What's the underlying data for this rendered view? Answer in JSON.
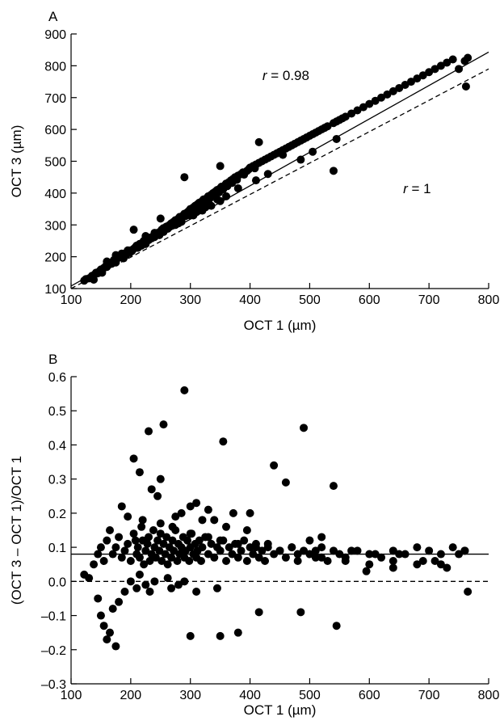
{
  "chart_data": [
    {
      "type": "scatter",
      "panel": "A",
      "xlabel": "OCT 1 (µm)",
      "ylabel": "OCT 3 (µm)",
      "xlim": [
        100,
        800
      ],
      "ylim": [
        100,
        900
      ],
      "xticks": [
        "100",
        "200",
        "300",
        "400",
        "500",
        "600",
        "700",
        "800"
      ],
      "yticks": [
        "100",
        "200",
        "300",
        "400",
        "500",
        "600",
        "700",
        "800",
        "900"
      ],
      "annotations": [
        {
          "var": "r",
          "text": " = 0.98",
          "x": 460,
          "y": 755
        },
        {
          "var": "r",
          "text": " = 1",
          "x": 680,
          "y": 400
        }
      ],
      "lines": [
        {
          "style": "solid",
          "points": [
            [
              100,
              108
            ],
            [
              800,
              843
            ]
          ]
        },
        {
          "style": "dashed",
          "points": [
            [
              100,
              100
            ],
            [
              800,
              790
            ]
          ]
        }
      ],
      "x": [
        122,
        125,
        130,
        135,
        138,
        140,
        142,
        145,
        148,
        150,
        152,
        155,
        158,
        160,
        162,
        165,
        168,
        170,
        172,
        175,
        178,
        180,
        182,
        185,
        188,
        190,
        192,
        195,
        198,
        200,
        202,
        205,
        208,
        210,
        212,
        215,
        218,
        220,
        222,
        225,
        228,
        230,
        232,
        235,
        238,
        240,
        242,
        245,
        248,
        250,
        252,
        255,
        258,
        260,
        262,
        265,
        268,
        270,
        272,
        275,
        278,
        280,
        282,
        285,
        288,
        290,
        292,
        295,
        298,
        300,
        302,
        305,
        308,
        310,
        312,
        315,
        318,
        320,
        322,
        325,
        328,
        330,
        332,
        335,
        338,
        340,
        342,
        345,
        348,
        350,
        352,
        355,
        358,
        360,
        362,
        365,
        368,
        370,
        372,
        375,
        378,
        380,
        385,
        388,
        390,
        395,
        398,
        400,
        405,
        408,
        410,
        415,
        420,
        425,
        430,
        435,
        440,
        445,
        450,
        455,
        460,
        465,
        470,
        475,
        480,
        485,
        490,
        495,
        500,
        505,
        510,
        515,
        520,
        525,
        530,
        540,
        545,
        550,
        555,
        560,
        570,
        580,
        590,
        600,
        610,
        620,
        630,
        640,
        650,
        660,
        670,
        680,
        690,
        700,
        710,
        720,
        730,
        740,
        750,
        760,
        762,
        765,
        225,
        240,
        255,
        270,
        285,
        305,
        320,
        335,
        350,
        360,
        175,
        195,
        215,
        230,
        262,
        280,
        300,
        310,
        325,
        345,
        410,
        430,
        485,
        505,
        545,
        290,
        350,
        380,
        415,
        455,
        540,
        160,
        185,
        205,
        250,
        275
      ],
      "y": [
        125,
        130,
        132,
        140,
        128,
        145,
        150,
        148,
        155,
        160,
        150,
        165,
        170,
        168,
        175,
        180,
        178,
        185,
        190,
        182,
        195,
        200,
        198,
        205,
        195,
        210,
        205,
        215,
        212,
        220,
        218,
        225,
        230,
        235,
        228,
        240,
        235,
        245,
        250,
        240,
        255,
        252,
        260,
        258,
        265,
        262,
        270,
        275,
        268,
        280,
        285,
        278,
        290,
        295,
        288,
        300,
        305,
        298,
        310,
        315,
        308,
        320,
        325,
        318,
        330,
        335,
        328,
        340,
        345,
        350,
        338,
        355,
        360,
        352,
        365,
        370,
        362,
        375,
        380,
        372,
        385,
        390,
        382,
        395,
        400,
        392,
        405,
        410,
        402,
        415,
        420,
        412,
        425,
        430,
        422,
        435,
        440,
        432,
        445,
        450,
        442,
        455,
        460,
        465,
        458,
        470,
        475,
        480,
        485,
        478,
        490,
        495,
        500,
        505,
        510,
        515,
        520,
        525,
        530,
        535,
        540,
        545,
        550,
        555,
        560,
        565,
        570,
        575,
        580,
        585,
        590,
        595,
        600,
        605,
        610,
        620,
        625,
        630,
        635,
        640,
        650,
        660,
        670,
        680,
        690,
        700,
        710,
        720,
        730,
        740,
        750,
        760,
        770,
        780,
        790,
        800,
        810,
        820,
        790,
        815,
        735,
        825,
        265,
        275,
        290,
        300,
        310,
        330,
        345,
        360,
        375,
        390,
        205,
        220,
        240,
        255,
        290,
        305,
        330,
        340,
        355,
        380,
        440,
        460,
        505,
        530,
        570,
        450,
        485,
        415,
        560,
        520,
        470,
        185,
        210,
        285,
        320,
        300
      ]
    },
    {
      "type": "scatter",
      "panel": "B",
      "xlabel": "OCT 1 (µm)",
      "ylabel": "(OCT 3 – OCT 1)/OCT 1",
      "xlim": [
        100,
        800
      ],
      "ylim": [
        -0.3,
        0.6
      ],
      "xticks": [
        "100",
        "200",
        "300",
        "400",
        "500",
        "600",
        "700",
        "800"
      ],
      "yticks": [
        "–0.3",
        "–0.2",
        "–0.1",
        "0.0",
        "0.1",
        "0.2",
        "0.3",
        "0.4",
        "0.5",
        "0.6"
      ],
      "lines": [
        {
          "style": "solid",
          "points": [
            [
              100,
              0.08
            ],
            [
              800,
              0.08
            ]
          ]
        },
        {
          "style": "dashed",
          "points": [
            [
              100,
              0.0
            ],
            [
              800,
              0.0
            ]
          ]
        }
      ],
      "x": [
        122,
        130,
        138,
        145,
        150,
        155,
        160,
        165,
        170,
        175,
        180,
        185,
        190,
        195,
        200,
        205,
        208,
        210,
        212,
        215,
        218,
        220,
        222,
        225,
        228,
        230,
        232,
        235,
        238,
        240,
        242,
        245,
        248,
        250,
        252,
        255,
        258,
        260,
        262,
        265,
        268,
        270,
        272,
        275,
        278,
        280,
        282,
        285,
        288,
        290,
        292,
        295,
        298,
        300,
        302,
        305,
        308,
        310,
        312,
        315,
        318,
        320,
        325,
        330,
        335,
        340,
        345,
        350,
        355,
        360,
        365,
        370,
        375,
        380,
        385,
        390,
        395,
        400,
        405,
        410,
        415,
        420,
        425,
        430,
        440,
        450,
        460,
        470,
        480,
        490,
        500,
        510,
        520,
        530,
        540,
        550,
        560,
        580,
        600,
        620,
        640,
        660,
        680,
        700,
        720,
        740,
        760,
        145,
        150,
        155,
        160,
        165,
        170,
        175,
        180,
        190,
        200,
        210,
        215,
        225,
        232,
        240,
        262,
        268,
        280,
        290,
        300,
        310,
        345,
        350,
        380,
        415,
        485,
        545,
        230,
        250,
        290,
        310,
        330,
        355,
        372,
        400,
        440,
        460,
        490,
        500,
        520,
        595,
        640,
        720,
        765,
        205,
        215,
        235,
        245,
        255,
        275,
        285,
        300,
        320,
        340,
        360,
        395,
        430,
        470,
        510,
        540,
        570,
        610,
        650,
        690,
        730,
        760,
        185,
        195,
        220,
        250,
        270,
        300,
        330,
        350,
        380,
        410,
        450,
        480,
        520,
        560,
        600,
        640,
        680,
        710,
        750
      ],
      "y": [
        0.02,
        0.01,
        0.05,
        0.08,
        0.1,
        0.06,
        0.12,
        0.15,
        0.08,
        0.1,
        0.13,
        0.07,
        0.09,
        0.11,
        0.06,
        0.14,
        0.12,
        0.08,
        0.1,
        0.07,
        0.16,
        0.12,
        0.05,
        0.09,
        0.11,
        0.13,
        0.06,
        0.08,
        0.15,
        0.1,
        0.07,
        0.12,
        0.09,
        0.14,
        0.06,
        0.11,
        0.08,
        0.13,
        0.05,
        0.1,
        0.07,
        0.12,
        0.09,
        0.15,
        0.06,
        0.11,
        0.08,
        0.1,
        0.13,
        0.07,
        0.09,
        0.12,
        0.06,
        0.1,
        0.14,
        0.08,
        0.11,
        0.07,
        0.09,
        0.12,
        0.06,
        0.1,
        0.13,
        0.08,
        0.11,
        0.07,
        0.1,
        0.09,
        0.12,
        0.06,
        0.1,
        0.08,
        0.11,
        0.07,
        0.09,
        0.12,
        0.06,
        0.1,
        0.08,
        0.11,
        0.07,
        0.09,
        0.06,
        0.1,
        0.08,
        0.09,
        0.07,
        0.1,
        0.06,
        0.09,
        0.08,
        0.07,
        0.1,
        0.06,
        0.09,
        0.08,
        0.07,
        0.09,
        0.08,
        0.07,
        0.09,
        0.08,
        0.1,
        0.09,
        0.08,
        0.1,
        0.09,
        -0.05,
        -0.1,
        -0.13,
        -0.17,
        -0.15,
        -0.08,
        -0.19,
        -0.06,
        -0.03,
        0.0,
        -0.02,
        0.02,
        -0.01,
        -0.03,
        0.0,
        0.01,
        -0.02,
        -0.01,
        0.0,
        -0.16,
        -0.03,
        -0.02,
        -0.16,
        -0.15,
        -0.09,
        -0.09,
        -0.13,
        0.44,
        0.3,
        0.56,
        0.23,
        0.21,
        0.41,
        0.2,
        0.2,
        0.34,
        0.29,
        0.45,
        0.12,
        0.13,
        0.03,
        0.06,
        0.05,
        -0.03,
        0.36,
        0.32,
        0.27,
        0.25,
        0.46,
        0.19,
        0.2,
        0.22,
        0.18,
        0.18,
        0.16,
        0.15,
        0.11,
        0.1,
        0.09,
        0.28,
        0.09,
        0.08,
        0.08,
        0.06,
        0.04,
        0.09,
        0.22,
        0.19,
        0.18,
        0.17,
        0.16,
        0.14,
        0.13,
        0.12,
        0.11,
        0.1,
        0.09,
        0.08,
        0.07,
        0.06,
        0.05,
        0.04,
        0.05,
        0.06,
        0.08
      ]
    }
  ]
}
